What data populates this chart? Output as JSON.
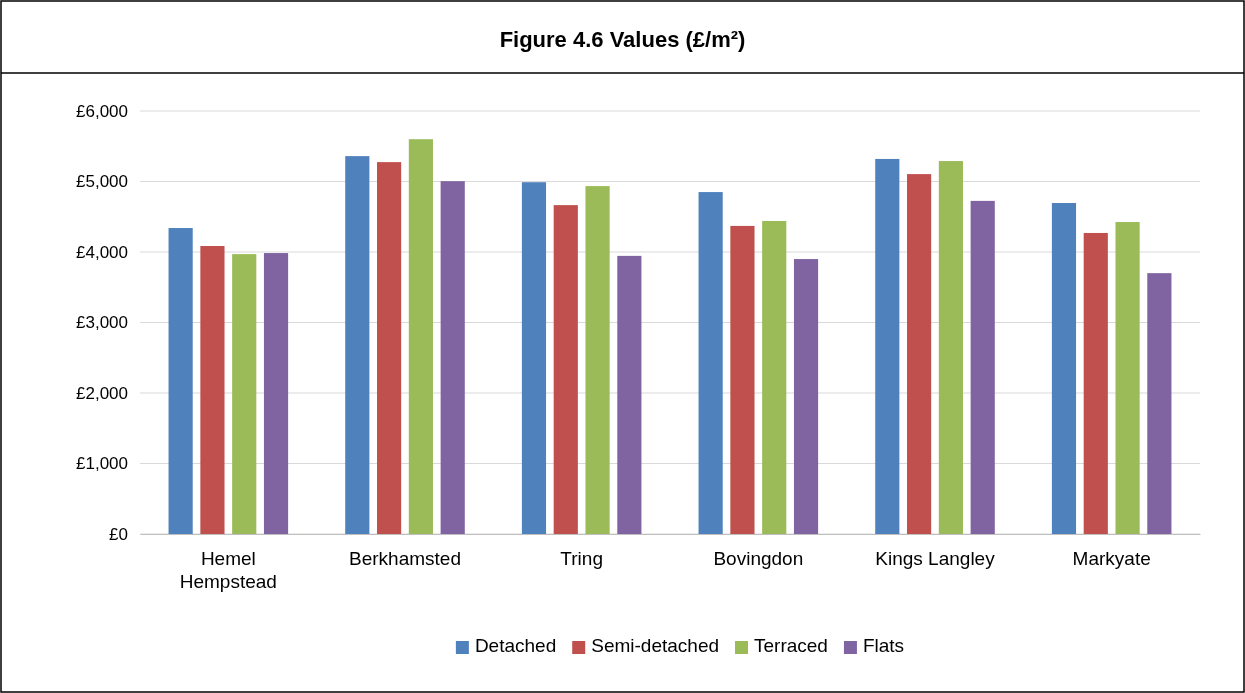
{
  "chart_data": {
    "type": "bar",
    "title": "Figure 4.6  Values (£/m²)",
    "categories": [
      "Hemel Hempstead",
      "Berkhamsted",
      "Tring",
      "Bovingdon",
      "Kings Langley",
      "Markyate"
    ],
    "series": [
      {
        "name": "Detached",
        "color": "#4f81bd",
        "values": [
          4340,
          5360,
          4990,
          4850,
          5320,
          4695
        ]
      },
      {
        "name": "Semi-detached",
        "color": "#c0504d",
        "values": [
          4085,
          5275,
          4665,
          4370,
          5105,
          4270
        ]
      },
      {
        "name": "Terraced",
        "color": "#9bbb59",
        "values": [
          3970,
          5600,
          4935,
          4440,
          5290,
          4425
        ]
      },
      {
        "name": "Flats",
        "color": "#8064a2",
        "values": [
          3985,
          5005,
          3945,
          3900,
          4725,
          3700
        ]
      }
    ],
    "ylim": [
      0,
      6000
    ],
    "yticks": [
      {
        "value": 0,
        "label": "£0"
      },
      {
        "value": 1000,
        "label": "£1,000"
      },
      {
        "value": 2000,
        "label": "£2,000"
      },
      {
        "value": 3000,
        "label": "£3,000"
      },
      {
        "value": 4000,
        "label": "£4,000"
      },
      {
        "value": 5000,
        "label": "£5,000"
      },
      {
        "value": 6000,
        "label": "£6,000"
      }
    ],
    "grid": "y",
    "legend": "bottom"
  }
}
